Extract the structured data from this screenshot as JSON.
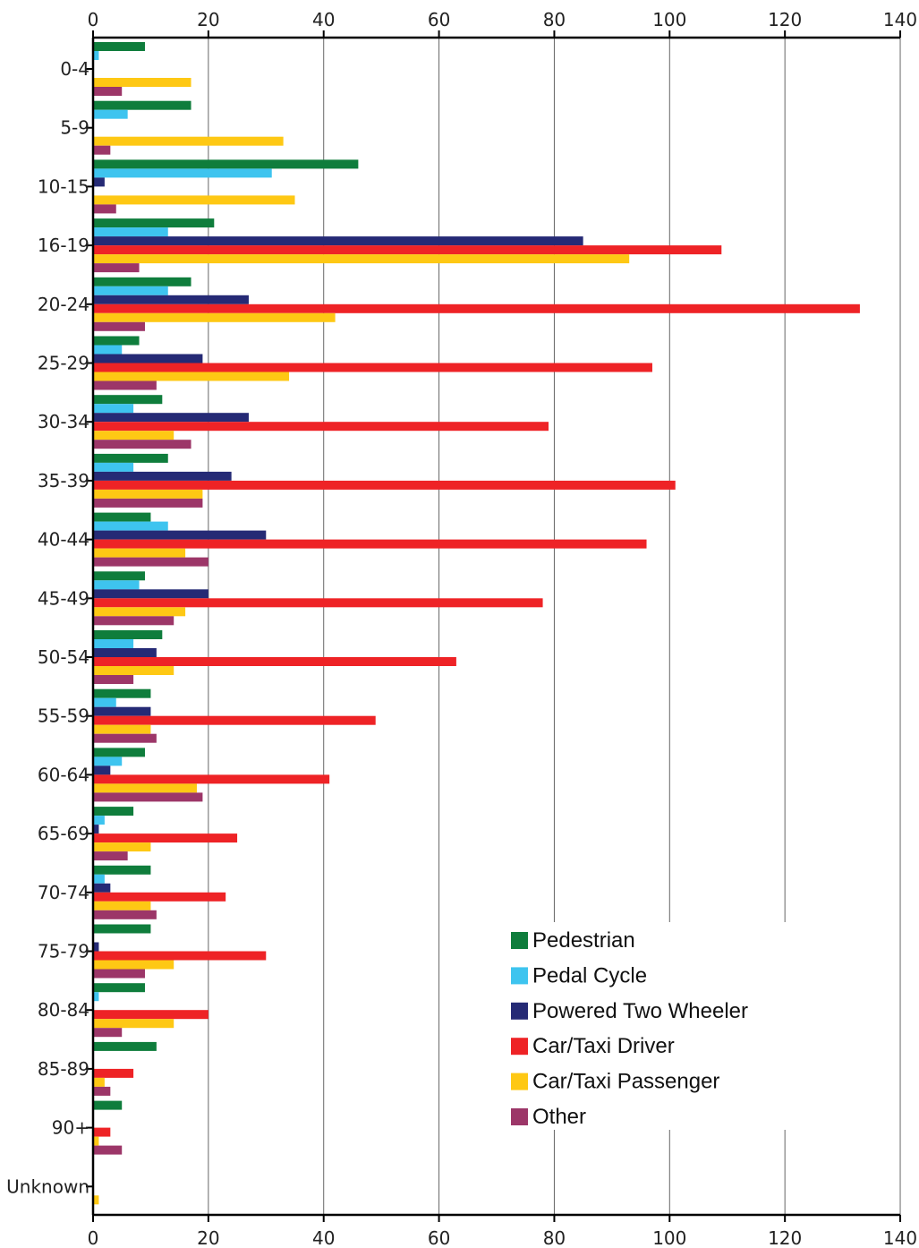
{
  "chart_data": {
    "type": "bar",
    "orientation": "horizontal",
    "categories": [
      "0-4",
      "5-9",
      "10-15",
      "16-19",
      "20-24",
      "25-29",
      "30-34",
      "35-39",
      "40-44",
      "45-49",
      "50-54",
      "55-59",
      "60-64",
      "65-69",
      "70-74",
      "75-79",
      "80-84",
      "85-89",
      "90+",
      "Unknown"
    ],
    "series": [
      {
        "name": "Pedestrian",
        "color": "#0f7d3c",
        "values": [
          9,
          17,
          46,
          21,
          17,
          8,
          12,
          13,
          10,
          9,
          12,
          10,
          9,
          7,
          10,
          10,
          9,
          11,
          5,
          0
        ]
      },
      {
        "name": "Pedal Cycle",
        "color": "#3ec4ef",
        "values": [
          1,
          6,
          31,
          13,
          13,
          5,
          7,
          7,
          13,
          8,
          7,
          4,
          5,
          2,
          2,
          0,
          1,
          0,
          0,
          0
        ]
      },
      {
        "name": "Powered Two Wheeler",
        "color": "#252a75",
        "values": [
          0,
          0,
          2,
          85,
          27,
          19,
          27,
          24,
          30,
          20,
          11,
          10,
          3,
          1,
          3,
          1,
          0,
          0,
          0,
          0
        ]
      },
      {
        "name": "Car/Taxi Driver",
        "color": "#ee2326",
        "values": [
          0,
          0,
          0,
          109,
          133,
          97,
          79,
          101,
          96,
          78,
          63,
          49,
          41,
          25,
          23,
          30,
          20,
          7,
          3,
          0
        ]
      },
      {
        "name": "Car/Taxi Passenger",
        "color": "#fec814",
        "values": [
          17,
          33,
          35,
          93,
          42,
          34,
          14,
          19,
          16,
          16,
          14,
          10,
          18,
          10,
          10,
          14,
          14,
          2,
          1,
          1
        ]
      },
      {
        "name": "Other",
        "color": "#9c3668",
        "values": [
          5,
          3,
          4,
          8,
          9,
          11,
          17,
          19,
          20,
          14,
          7,
          11,
          19,
          6,
          11,
          9,
          5,
          3,
          5,
          0
        ]
      }
    ],
    "xlim": [
      0,
      140
    ],
    "xticks": [
      0,
      20,
      40,
      60,
      80,
      100,
      120,
      140
    ],
    "grid": true,
    "legend_position": "bottom-right"
  }
}
